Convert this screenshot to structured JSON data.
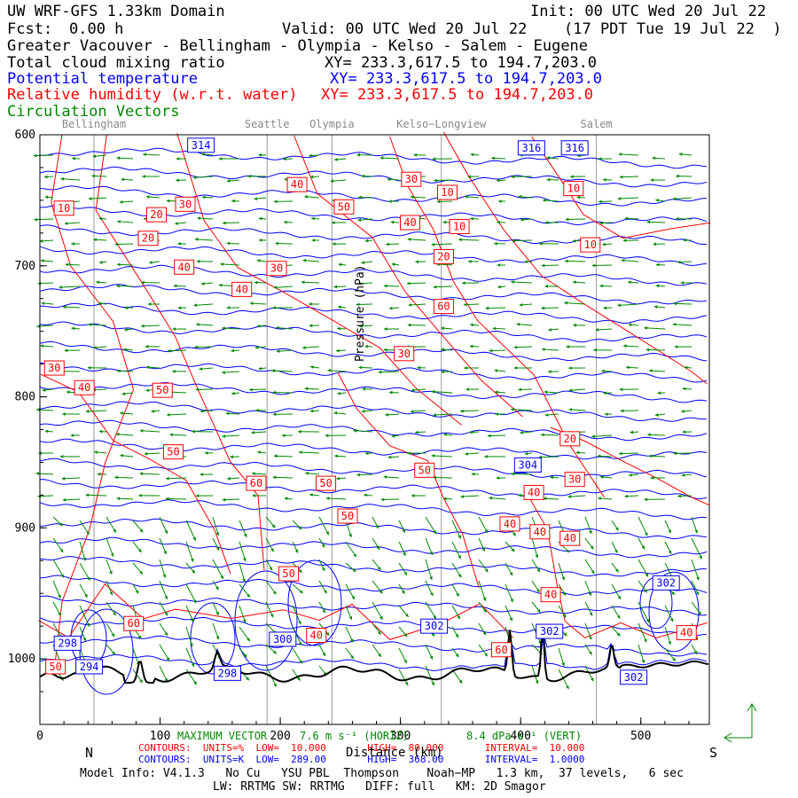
{
  "header": {
    "title": "UW WRF-GFS 1.33km Domain",
    "init": "Init: 00 UTC Wed 20 Jul 22",
    "fcst_label": "Fcst:",
    "fcst_value": "0.00 h",
    "valid": "Valid: 00 UTC Wed 20 Jul 22",
    "local_time": "(17 PDT Tue 19 Jul 22  )",
    "region": "Greater Vacouver - Bellingham - Olympia - Kelso - Salem - Eugene",
    "field1": "Total cloud mixing ratio",
    "field1_xy": "XY= 233.3,617.5 to 194.7,203.0",
    "field2": "Potential temperature",
    "field2_xy": "XY= 233.3,617.5 to 194.7,203.0",
    "field3": "Relative humidity (w.r.t. water)",
    "field3_xy": "XY= 233.3,617.5 to 194.7,203.0",
    "field4": "Circulation Vectors"
  },
  "chart_data": {
    "type": "cross-section",
    "xlabel": "Distance (km)",
    "ylabel": "Pressure (hPa)",
    "xlim": [
      0,
      557
    ],
    "ylim": [
      1050,
      600
    ],
    "x_ticks": [
      "0",
      "100",
      "200",
      "300",
      "400",
      "500"
    ],
    "y_ticks": [
      "600",
      "700",
      "800",
      "900",
      "1000"
    ],
    "end_labels": {
      "left": "N",
      "right": "S"
    },
    "locations": [
      {
        "name": "Bellingham",
        "x": 45
      },
      {
        "name": "Seattle",
        "x": 189
      },
      {
        "name": "Olympia",
        "x": 243
      },
      {
        "name": "Kelso−Longview",
        "x": 334
      },
      {
        "name": "Salem",
        "x": 463
      }
    ],
    "theta_labels": [
      {
        "text": "314",
        "x": 134,
        "p": 608
      },
      {
        "text": "316",
        "x": 409,
        "p": 610
      },
      {
        "text": "316",
        "x": 445,
        "p": 610
      },
      {
        "text": "304",
        "x": 406,
        "p": 852
      },
      {
        "text": "302",
        "x": 521,
        "p": 942
      },
      {
        "text": "302",
        "x": 328,
        "p": 975
      },
      {
        "text": "302",
        "x": 424,
        "p": 979
      },
      {
        "text": "300",
        "x": 202,
        "p": 985
      },
      {
        "text": "298",
        "x": 23,
        "p": 988
      },
      {
        "text": "294",
        "x": 41,
        "p": 1006
      },
      {
        "text": "298",
        "x": 156,
        "p": 1011
      },
      {
        "text": "302",
        "x": 494,
        "p": 1014
      }
    ],
    "rh_labels": [
      {
        "text": "10",
        "x": 20,
        "p": 656
      },
      {
        "text": "20",
        "x": 97,
        "p": 661
      },
      {
        "text": "30",
        "x": 121,
        "p": 653
      },
      {
        "text": "20",
        "x": 90,
        "p": 679
      },
      {
        "text": "40",
        "x": 214,
        "p": 638
      },
      {
        "text": "50",
        "x": 253,
        "p": 655
      },
      {
        "text": "30",
        "x": 309,
        "p": 634
      },
      {
        "text": "10",
        "x": 339,
        "p": 644
      },
      {
        "text": "40",
        "x": 308,
        "p": 667
      },
      {
        "text": "10",
        "x": 349,
        "p": 670
      },
      {
        "text": "10",
        "x": 444,
        "p": 641
      },
      {
        "text": "10",
        "x": 458,
        "p": 684
      },
      {
        "text": "20",
        "x": 336,
        "p": 693
      },
      {
        "text": "40",
        "x": 120,
        "p": 701
      },
      {
        "text": "30",
        "x": 197,
        "p": 702
      },
      {
        "text": "40",
        "x": 168,
        "p": 718
      },
      {
        "text": "60",
        "x": 336,
        "p": 731
      },
      {
        "text": "30",
        "x": 303,
        "p": 767
      },
      {
        "text": "30",
        "x": 12,
        "p": 778
      },
      {
        "text": "40",
        "x": 37,
        "p": 793
      },
      {
        "text": "50",
        "x": 102,
        "p": 795
      },
      {
        "text": "20",
        "x": 441,
        "p": 832
      },
      {
        "text": "50",
        "x": 111,
        "p": 842
      },
      {
        "text": "50",
        "x": 320,
        "p": 856
      },
      {
        "text": "30",
        "x": 445,
        "p": 863
      },
      {
        "text": "60",
        "x": 180,
        "p": 866
      },
      {
        "text": "50",
        "x": 238,
        "p": 866
      },
      {
        "text": "40",
        "x": 411,
        "p": 873
      },
      {
        "text": "50",
        "x": 256,
        "p": 891
      },
      {
        "text": "40",
        "x": 391,
        "p": 897
      },
      {
        "text": "40",
        "x": 416,
        "p": 903
      },
      {
        "text": "40",
        "x": 441,
        "p": 908
      },
      {
        "text": "50",
        "x": 207,
        "p": 935
      },
      {
        "text": "40",
        "x": 425,
        "p": 951
      },
      {
        "text": "60",
        "x": 78,
        "p": 973
      },
      {
        "text": "40",
        "x": 230,
        "p": 982
      },
      {
        "text": "40",
        "x": 538,
        "p": 980
      },
      {
        "text": "50",
        "x": 13,
        "p": 1006
      },
      {
        "text": "60",
        "x": 384,
        "p": 993
      }
    ]
  },
  "footer": {
    "max_vector": "MAXIMUM VECTOR",
    "horiz": "7.6 m s⁻¹ (HORIZ)",
    "vert": "8.4 dPa s⁻¹ (VERT)",
    "rh_contours": "CONTOURS:  UNITS=%  LOW=  10.000       HIGH=  80.000       INTERVAL=  10.000",
    "th_contours": "CONTOURS:  UNITS=K  LOW=  289.00       HIGH=  368.00       INTERVAL=  1.0000",
    "model_info": "Model Info: V4.1.3   No Cu   YSU PBL  Thompson    Noah−MP   1.3 km,  37 levels,   6 sec",
    "model_info2": "LW: RRTMG SW: RRTMG   DIFF: full   KM: 2D Smagor"
  },
  "colors": {
    "theta": "#0000ff",
    "rh": "#ff0000",
    "vectors": "#008800",
    "terrain": "#000000",
    "location_lines": "#999999"
  }
}
